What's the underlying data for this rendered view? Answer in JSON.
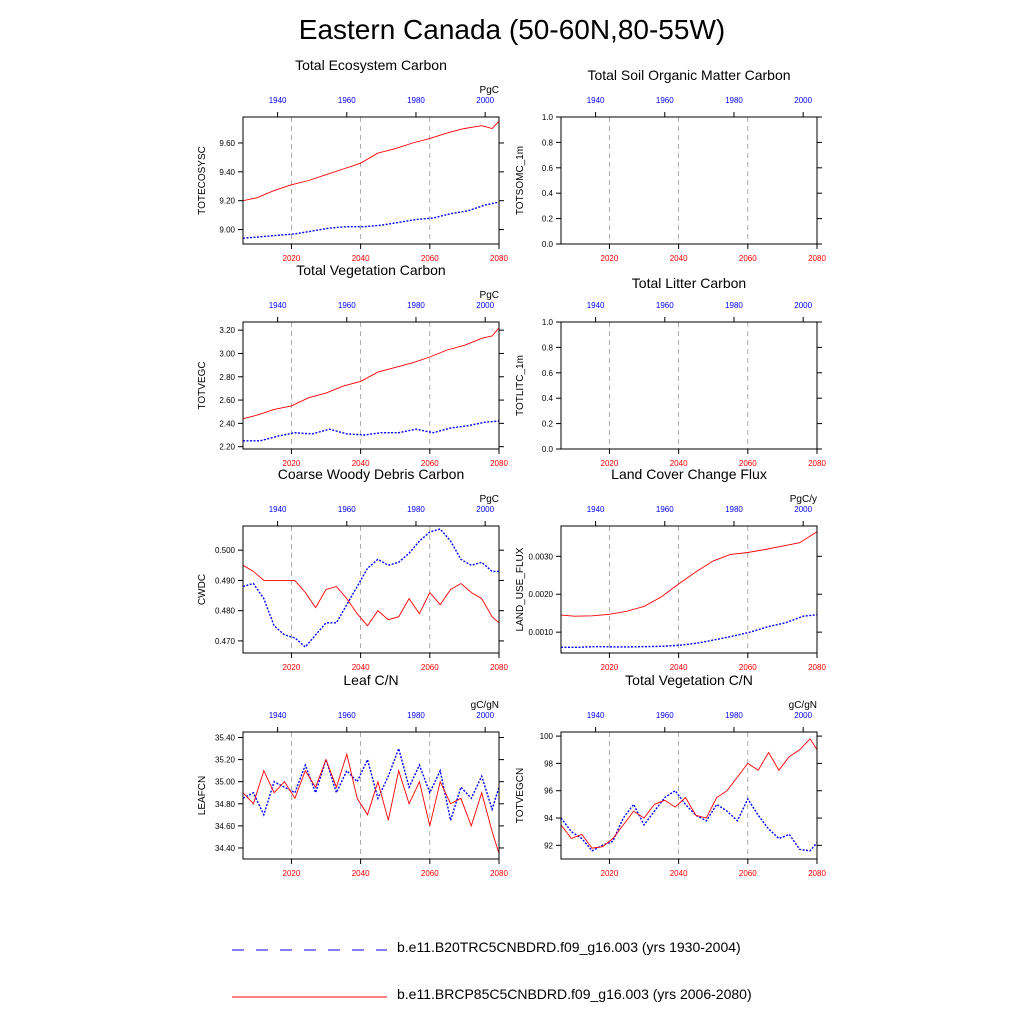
{
  "title": "Eastern Canada (50-60N,80-55W)",
  "colors": {
    "historical": "#0000ff",
    "future": "#ff0000",
    "axis": "#000000",
    "grid": "#999999"
  },
  "legend": {
    "entries": [
      {
        "label": "b.e11.B20TRC5CNBDRD.f09_g16.003 (yrs 1930-2004)",
        "style": "dashed",
        "color": "#0000ff"
      },
      {
        "label": "b.e11.BRCP85C5CNBDRD.f09_g16.003 (yrs 2006-2080)",
        "style": "solid",
        "color": "#ff0000"
      }
    ]
  },
  "chart_data": [
    {
      "type": "line",
      "title": "Total Ecosystem Carbon",
      "ylabel": "TOTECOSYSC",
      "units": "PgC",
      "xlim_bottom": [
        2006,
        2080
      ],
      "xticks_bottom": [
        "2020",
        "2040",
        "2060",
        "2080"
      ],
      "xtick_values_bottom": [
        2020,
        2040,
        2060,
        2080
      ],
      "xlim_top": [
        1930,
        2004
      ],
      "xticks_top": [
        "1940",
        "1960",
        "1980",
        "2000"
      ],
      "xtick_values_top": [
        1940,
        1960,
        1980,
        2000
      ],
      "ylim": [
        8.9,
        9.78
      ],
      "yticks": [
        "9.00",
        "9.20",
        "9.40",
        "9.60"
      ],
      "ytick_values": [
        9.0,
        9.2,
        9.4,
        9.6
      ],
      "series": [
        {
          "name": "b.e11.B20TRC5CNBDRD.f09_g16.003 (yrs 1930-2004)",
          "axis": "top",
          "x": [
            1930,
            1935,
            1940,
            1945,
            1950,
            1955,
            1960,
            1965,
            1970,
            1975,
            1980,
            1985,
            1990,
            1995,
            2000,
            2004
          ],
          "values": [
            8.94,
            8.95,
            8.96,
            8.97,
            8.99,
            9.01,
            9.02,
            9.02,
            9.03,
            9.05,
            9.07,
            9.08,
            9.11,
            9.13,
            9.17,
            9.19
          ]
        },
        {
          "name": "b.e11.BRCP85C5CNBDRD.f09_g16.003 (yrs 2006-2080)",
          "axis": "bottom",
          "x": [
            2006,
            2010,
            2015,
            2020,
            2025,
            2030,
            2035,
            2040,
            2045,
            2050,
            2055,
            2060,
            2065,
            2070,
            2075,
            2078,
            2080
          ],
          "values": [
            9.2,
            9.22,
            9.27,
            9.31,
            9.34,
            9.38,
            9.42,
            9.46,
            9.53,
            9.56,
            9.6,
            9.63,
            9.67,
            9.7,
            9.72,
            9.7,
            9.75
          ]
        }
      ]
    },
    {
      "type": "line",
      "title": "Total Soil Organic Matter Carbon",
      "ylabel": "TOTSOMC_1m",
      "units": "",
      "xlim_bottom": [
        2006,
        2080
      ],
      "xticks_bottom": [
        "2020",
        "2040",
        "2060",
        "2080"
      ],
      "xtick_values_bottom": [
        2020,
        2040,
        2060,
        2080
      ],
      "xlim_top": [
        1930,
        2004
      ],
      "xticks_top": [
        "1940",
        "1960",
        "1980",
        "2000"
      ],
      "xtick_values_top": [
        1940,
        1960,
        1980,
        2000
      ],
      "ylim": [
        0,
        1
      ],
      "yticks": [
        "0.0",
        "0.2",
        "0.4",
        "0.6",
        "0.8",
        "1.0"
      ],
      "ytick_values": [
        0,
        0.2,
        0.4,
        0.6,
        0.8,
        1.0
      ],
      "series": []
    },
    {
      "type": "line",
      "title": "Total Vegetation Carbon",
      "ylabel": "TOTVEGC",
      "units": "PgC",
      "xlim_bottom": [
        2006,
        2080
      ],
      "xticks_bottom": [
        "2020",
        "2040",
        "2060",
        "2080"
      ],
      "xtick_values_bottom": [
        2020,
        2040,
        2060,
        2080
      ],
      "xlim_top": [
        1930,
        2004
      ],
      "xticks_top": [
        "1940",
        "1960",
        "1980",
        "2000"
      ],
      "xtick_values_top": [
        1940,
        1960,
        1980,
        2000
      ],
      "ylim": [
        2.18,
        3.27
      ],
      "yticks": [
        "2.20",
        "2.40",
        "2.60",
        "2.80",
        "3.00",
        "3.20"
      ],
      "ytick_values": [
        2.2,
        2.4,
        2.6,
        2.8,
        3.0,
        3.2
      ],
      "series": [
        {
          "name": "b.e11.B20TRC5CNBDRD.f09_g16.003 (yrs 1930-2004)",
          "axis": "top",
          "x": [
            1930,
            1935,
            1940,
            1945,
            1950,
            1955,
            1960,
            1965,
            1970,
            1975,
            1980,
            1985,
            1990,
            1995,
            2000,
            2004
          ],
          "values": [
            2.25,
            2.25,
            2.29,
            2.32,
            2.31,
            2.35,
            2.31,
            2.3,
            2.32,
            2.32,
            2.35,
            2.32,
            2.36,
            2.38,
            2.41,
            2.42
          ]
        },
        {
          "name": "b.e11.BRCP85C5CNBDRD.f09_g16.003 (yrs 2006-2080)",
          "axis": "bottom",
          "x": [
            2006,
            2010,
            2015,
            2020,
            2025,
            2030,
            2035,
            2040,
            2045,
            2050,
            2055,
            2060,
            2065,
            2070,
            2075,
            2078,
            2080
          ],
          "values": [
            2.44,
            2.47,
            2.52,
            2.55,
            2.62,
            2.66,
            2.72,
            2.76,
            2.84,
            2.88,
            2.92,
            2.97,
            3.03,
            3.07,
            3.13,
            3.15,
            3.22
          ]
        }
      ]
    },
    {
      "type": "line",
      "title": "Total Litter Carbon",
      "ylabel": "TOTLITC_1m",
      "units": "",
      "xlim_bottom": [
        2006,
        2080
      ],
      "xticks_bottom": [
        "2020",
        "2040",
        "2060",
        "2080"
      ],
      "xtick_values_bottom": [
        2020,
        2040,
        2060,
        2080
      ],
      "xlim_top": [
        1930,
        2004
      ],
      "xticks_top": [
        "1940",
        "1960",
        "1980",
        "2000"
      ],
      "xtick_values_top": [
        1940,
        1960,
        1980,
        2000
      ],
      "ylim": [
        0,
        1
      ],
      "yticks": [
        "0.0",
        "0.2",
        "0.4",
        "0.6",
        "0.8",
        "1.0"
      ],
      "ytick_values": [
        0,
        0.2,
        0.4,
        0.6,
        0.8,
        1.0
      ],
      "series": []
    },
    {
      "type": "line",
      "title": "Coarse Woody Debris Carbon",
      "ylabel": "CWDC",
      "units": "PgC",
      "xlim_bottom": [
        2006,
        2080
      ],
      "xticks_bottom": [
        "2020",
        "2040",
        "2060",
        "2080"
      ],
      "xtick_values_bottom": [
        2020,
        2040,
        2060,
        2080
      ],
      "xlim_top": [
        1930,
        2004
      ],
      "xticks_top": [
        "1940",
        "1960",
        "1980",
        "2000"
      ],
      "xtick_values_top": [
        1940,
        1960,
        1980,
        2000
      ],
      "ylim": [
        0.466,
        0.508
      ],
      "yticks": [
        "0.470",
        "0.480",
        "0.490",
        "0.500"
      ],
      "ytick_values": [
        0.47,
        0.48,
        0.49,
        0.5
      ],
      "series": [
        {
          "name": "b.e11.B20TRC5CNBDRD.f09_g16.003 (yrs 1930-2004)",
          "axis": "top",
          "x": [
            1930,
            1933,
            1936,
            1939,
            1942,
            1945,
            1948,
            1951,
            1954,
            1957,
            1960,
            1963,
            1966,
            1969,
            1972,
            1975,
            1978,
            1981,
            1984,
            1987,
            1990,
            1993,
            1996,
            1999,
            2002,
            2004
          ],
          "values": [
            0.488,
            0.489,
            0.484,
            0.475,
            0.472,
            0.471,
            0.468,
            0.472,
            0.476,
            0.476,
            0.482,
            0.488,
            0.494,
            0.497,
            0.495,
            0.496,
            0.499,
            0.503,
            0.506,
            0.507,
            0.503,
            0.497,
            0.495,
            0.496,
            0.493,
            0.493
          ]
        },
        {
          "name": "b.e11.BRCP85C5CNBDRD.f09_g16.003 (yrs 2006-2080)",
          "axis": "bottom",
          "x": [
            2006,
            2009,
            2012,
            2015,
            2018,
            2021,
            2024,
            2027,
            2030,
            2033,
            2036,
            2039,
            2042,
            2045,
            2048,
            2051,
            2054,
            2057,
            2060,
            2063,
            2066,
            2069,
            2072,
            2075,
            2078,
            2080
          ],
          "values": [
            0.495,
            0.493,
            0.49,
            0.49,
            0.49,
            0.49,
            0.486,
            0.481,
            0.487,
            0.488,
            0.484,
            0.479,
            0.475,
            0.48,
            0.477,
            0.478,
            0.484,
            0.479,
            0.486,
            0.482,
            0.487,
            0.489,
            0.486,
            0.484,
            0.478,
            0.476
          ]
        }
      ]
    },
    {
      "type": "line",
      "title": "Land Cover Change Flux",
      "ylabel": "LAND_USE_FLUX",
      "units": "PgC/y",
      "xlim_bottom": [
        2006,
        2080
      ],
      "xticks_bottom": [
        "2020",
        "2040",
        "2060",
        "2080"
      ],
      "xtick_values_bottom": [
        2020,
        2040,
        2060,
        2080
      ],
      "xlim_top": [
        1930,
        2004
      ],
      "xticks_top": [
        "1940",
        "1960",
        "1980",
        "2000"
      ],
      "xtick_values_top": [
        1940,
        1960,
        1980,
        2000
      ],
      "ylim": [
        0.00045,
        0.0038
      ],
      "yticks": [
        "0.0010",
        "0.0020",
        "0.0030"
      ],
      "ytick_values": [
        0.001,
        0.002,
        0.003
      ],
      "series": [
        {
          "name": "b.e11.B20TRC5CNBDRD.f09_g16.003 (yrs 1930-2004)",
          "axis": "top",
          "x": [
            1930,
            1935,
            1940,
            1945,
            1950,
            1955,
            1960,
            1965,
            1970,
            1975,
            1980,
            1985,
            1990,
            1995,
            2000,
            2004
          ],
          "values": [
            0.0006,
            0.0006,
            0.00062,
            0.00061,
            0.00061,
            0.00062,
            0.00063,
            0.00066,
            0.00072,
            0.00081,
            0.0009,
            0.00101,
            0.00115,
            0.00125,
            0.00142,
            0.00146
          ]
        },
        {
          "name": "b.e11.BRCP85C5CNBDRD.f09_g16.003 (yrs 2006-2080)",
          "axis": "bottom",
          "x": [
            2006,
            2010,
            2015,
            2020,
            2025,
            2030,
            2035,
            2040,
            2045,
            2050,
            2055,
            2060,
            2065,
            2070,
            2075,
            2080
          ],
          "values": [
            0.00145,
            0.00142,
            0.00143,
            0.00147,
            0.00155,
            0.00168,
            0.00193,
            0.00227,
            0.00259,
            0.00288,
            0.00305,
            0.0031,
            0.00318,
            0.00327,
            0.00336,
            0.00365
          ]
        }
      ]
    },
    {
      "type": "line",
      "title": "Leaf C/N",
      "ylabel": "LEAFCN",
      "units": "gC/gN",
      "xlim_bottom": [
        2006,
        2080
      ],
      "xticks_bottom": [
        "2020",
        "2040",
        "2060",
        "2080"
      ],
      "xtick_values_bottom": [
        2020,
        2040,
        2060,
        2080
      ],
      "xlim_top": [
        1930,
        2004
      ],
      "xticks_top": [
        "1940",
        "1960",
        "1980",
        "2000"
      ],
      "xtick_values_top": [
        1940,
        1960,
        1980,
        2000
      ],
      "ylim": [
        34.3,
        35.45
      ],
      "yticks": [
        "34.40",
        "34.60",
        "34.80",
        "35.00",
        "35.20",
        "35.40"
      ],
      "ytick_values": [
        34.4,
        34.6,
        34.8,
        35.0,
        35.2,
        35.4
      ],
      "series": [
        {
          "name": "b.e11.B20TRC5CNBDRD.f09_g16.003 (yrs 1930-2004)",
          "axis": "top",
          "x": [
            1930,
            1933,
            1936,
            1939,
            1942,
            1945,
            1948,
            1951,
            1954,
            1957,
            1960,
            1963,
            1966,
            1969,
            1972,
            1975,
            1978,
            1981,
            1984,
            1987,
            1990,
            1993,
            1996,
            1999,
            2002,
            2004
          ],
          "values": [
            34.85,
            34.9,
            34.7,
            35.0,
            34.95,
            34.9,
            35.15,
            34.9,
            35.2,
            34.9,
            35.1,
            35.0,
            35.2,
            34.85,
            35.05,
            35.3,
            34.95,
            35.15,
            34.9,
            35.1,
            34.65,
            34.95,
            34.85,
            35.05,
            34.75,
            34.95
          ]
        },
        {
          "name": "b.e11.BRCP85C5CNBDRD.f09_g16.003 (yrs 2006-2080)",
          "axis": "bottom",
          "x": [
            2006,
            2009,
            2012,
            2015,
            2018,
            2021,
            2024,
            2027,
            2030,
            2033,
            2036,
            2039,
            2042,
            2045,
            2048,
            2051,
            2054,
            2057,
            2060,
            2063,
            2066,
            2069,
            2072,
            2075,
            2078,
            2080
          ],
          "values": [
            34.9,
            34.8,
            35.1,
            34.9,
            35.0,
            34.85,
            35.1,
            34.95,
            35.2,
            34.95,
            35.25,
            34.85,
            34.7,
            35.0,
            34.65,
            35.1,
            34.8,
            35.0,
            34.6,
            35.0,
            34.8,
            34.85,
            34.6,
            34.9,
            34.55,
            34.35
          ]
        }
      ]
    },
    {
      "type": "line",
      "title": "Total Vegetation C/N",
      "ylabel": "TOTVEGCN",
      "units": "gC/gN",
      "xlim_bottom": [
        2006,
        2080
      ],
      "xticks_bottom": [
        "2020",
        "2040",
        "2060",
        "2080"
      ],
      "xtick_values_bottom": [
        2020,
        2040,
        2060,
        2080
      ],
      "xlim_top": [
        1930,
        2004
      ],
      "xticks_top": [
        "1940",
        "1960",
        "1980",
        "2000"
      ],
      "xtick_values_top": [
        1940,
        1960,
        1980,
        2000
      ],
      "ylim": [
        91.0,
        100.3
      ],
      "yticks": [
        "92",
        "94",
        "96",
        "98",
        "100"
      ],
      "ytick_values": [
        92,
        94,
        96,
        98,
        100
      ],
      "series": [
        {
          "name": "b.e11.B20TRC5CNBDRD.f09_g16.003 (yrs 1930-2004)",
          "axis": "top",
          "x": [
            1930,
            1933,
            1936,
            1939,
            1942,
            1945,
            1948,
            1951,
            1954,
            1957,
            1960,
            1963,
            1966,
            1969,
            1972,
            1975,
            1978,
            1981,
            1984,
            1987,
            1990,
            1993,
            1996,
            1999,
            2002,
            2004
          ],
          "values": [
            94.0,
            93.0,
            92.5,
            91.6,
            92.0,
            92.3,
            94.0,
            95.0,
            93.5,
            94.5,
            95.5,
            96.0,
            95.0,
            94.2,
            93.8,
            95.0,
            94.5,
            93.8,
            95.4,
            94.2,
            93.2,
            92.5,
            92.8,
            91.7,
            91.6,
            92.2
          ]
        },
        {
          "name": "b.e11.BRCP85C5CNBDRD.f09_g16.003 (yrs 2006-2080)",
          "axis": "bottom",
          "x": [
            2006,
            2009,
            2012,
            2015,
            2018,
            2021,
            2024,
            2027,
            2030,
            2033,
            2036,
            2039,
            2042,
            2045,
            2048,
            2051,
            2054,
            2057,
            2060,
            2063,
            2066,
            2069,
            2072,
            2075,
            2078,
            2080
          ],
          "values": [
            93.5,
            92.5,
            92.8,
            91.8,
            91.9,
            92.5,
            93.5,
            94.5,
            94.0,
            95.0,
            95.3,
            94.8,
            95.5,
            94.2,
            94.0,
            95.5,
            96.0,
            97.0,
            98.0,
            97.5,
            98.8,
            97.5,
            98.5,
            99.0,
            99.8,
            99.0
          ]
        }
      ]
    }
  ]
}
